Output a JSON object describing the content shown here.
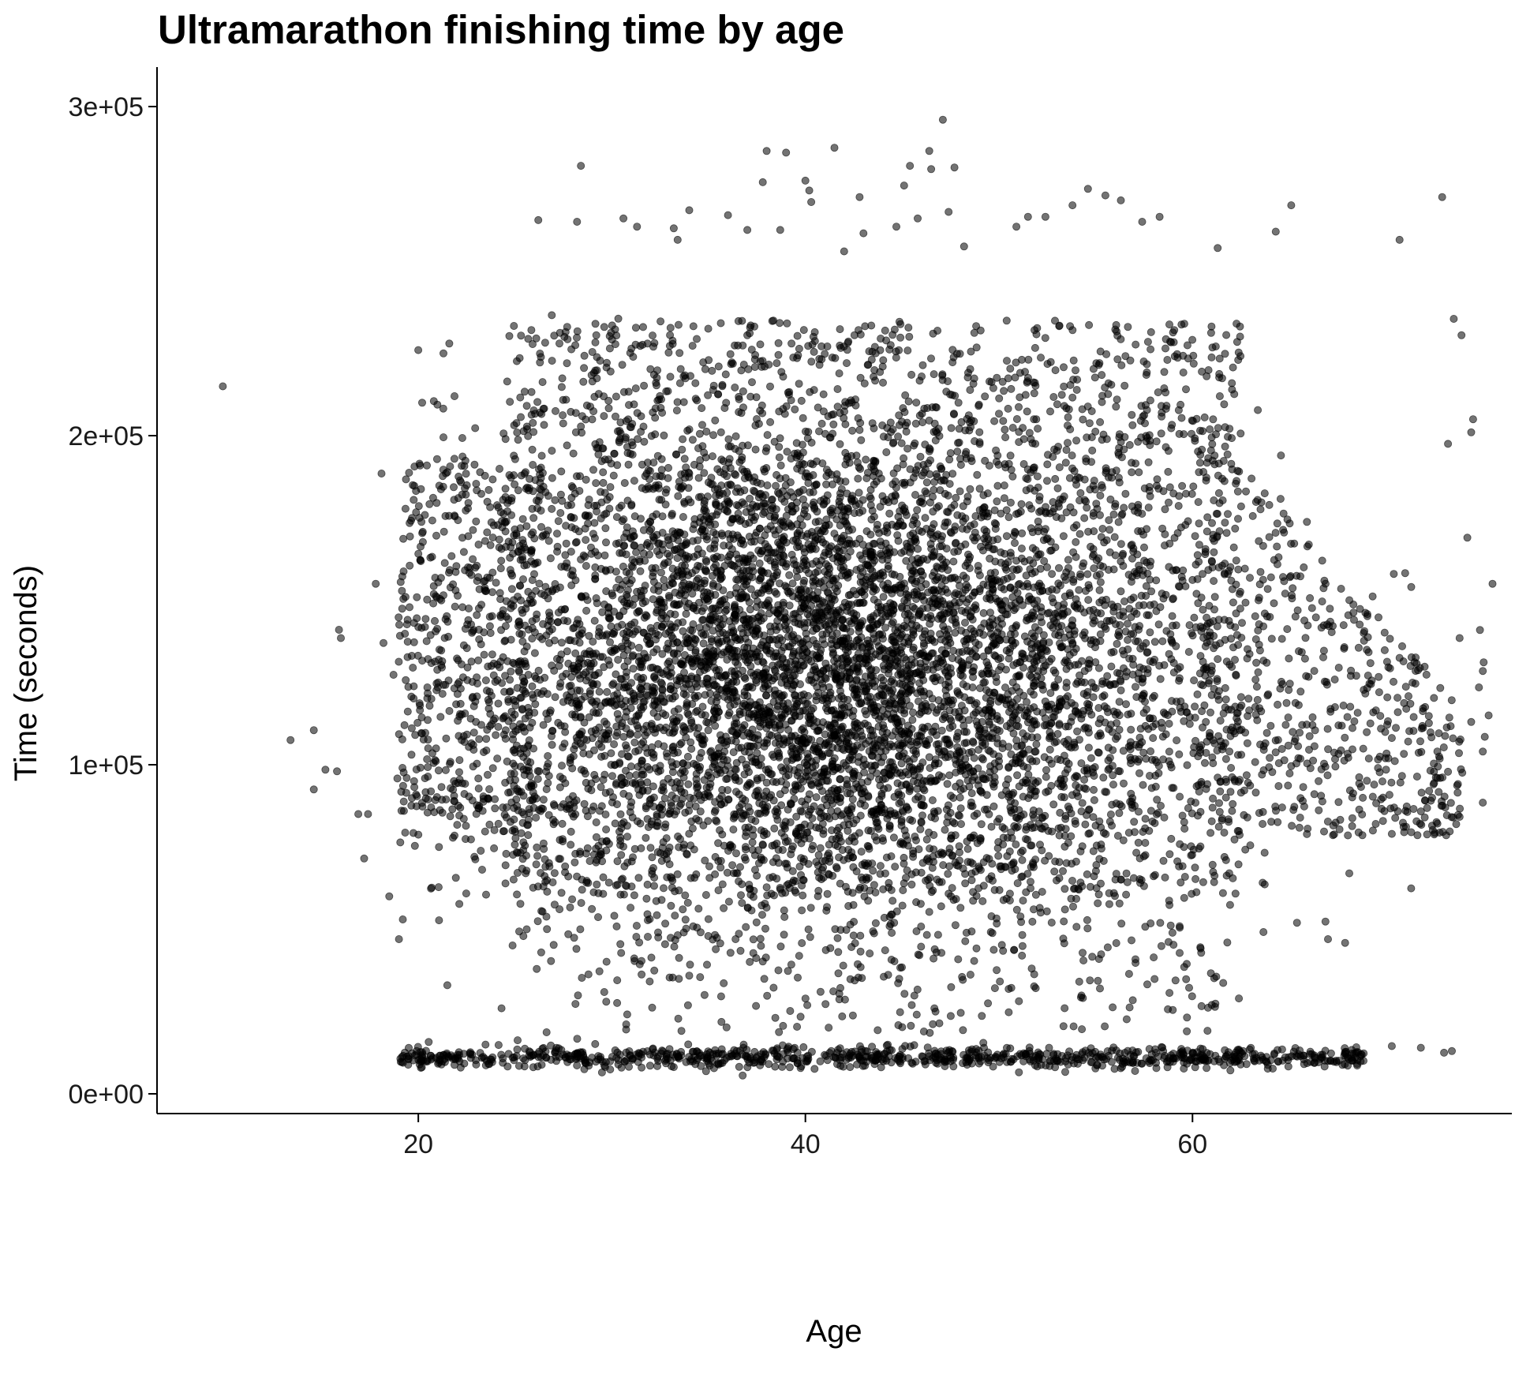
{
  "chart_data": {
    "type": "scatter",
    "title": "Ultramarathon finishing time by age",
    "xlabel": "Age",
    "ylabel": "Time (seconds)",
    "xlim": [
      6.5,
      76.5
    ],
    "ylim": [
      -6000,
      312000
    ],
    "x_ticks": [
      20,
      40,
      60
    ],
    "x_tick_labels": [
      "20",
      "40",
      "60"
    ],
    "y_ticks": [
      0,
      100000,
      200000,
      300000
    ],
    "y_tick_labels": [
      "0e+00",
      "1e+05",
      "2e+05",
      "3e+05"
    ],
    "grid": false,
    "legend": "none",
    "point_color": "#000000",
    "point_opacity": 0.55,
    "density_note_visible": false,
    "points_outliers": [
      [
        9.9,
        215000
      ],
      [
        13.4,
        107500
      ],
      [
        14.6,
        110500
      ],
      [
        14.6,
        92500
      ],
      [
        15.2,
        98500
      ],
      [
        15.8,
        98000
      ],
      [
        15.9,
        141000
      ],
      [
        16.0,
        138500
      ],
      [
        16.9,
        85000
      ],
      [
        17.2,
        71500
      ],
      [
        17.4,
        85000
      ],
      [
        17.8,
        155000
      ],
      [
        18.1,
        188500
      ],
      [
        18.2,
        137000
      ],
      [
        18.5,
        60000
      ],
      [
        19.0,
        47000
      ],
      [
        19.2,
        53000
      ],
      [
        19.4,
        96000
      ],
      [
        20.0,
        226000
      ],
      [
        20.2,
        210000
      ],
      [
        20.8,
        210500
      ],
      [
        21.3,
        225000
      ],
      [
        21.3,
        199500
      ],
      [
        21.6,
        228000
      ],
      [
        21.5,
        33000
      ],
      [
        24.3,
        26000
      ],
      [
        25.6,
        50000
      ],
      [
        26.2,
        265500
      ],
      [
        28.2,
        265000
      ],
      [
        28.4,
        282000
      ],
      [
        30.6,
        266000
      ],
      [
        31.3,
        263500
      ],
      [
        33.2,
        263000
      ],
      [
        33.4,
        259500
      ],
      [
        34.0,
        268500
      ],
      [
        36.0,
        267000
      ],
      [
        37.0,
        262500
      ],
      [
        37.8,
        277000
      ],
      [
        38.0,
        286500
      ],
      [
        38.7,
        262500
      ],
      [
        39.0,
        286000
      ],
      [
        40.0,
        277500
      ],
      [
        40.2,
        274500
      ],
      [
        40.3,
        271000
      ],
      [
        41.5,
        287500
      ],
      [
        42.0,
        256000
      ],
      [
        42.8,
        272500
      ],
      [
        43.0,
        261500
      ],
      [
        44.7,
        263500
      ],
      [
        45.1,
        276000
      ],
      [
        45.4,
        282000
      ],
      [
        45.8,
        266000
      ],
      [
        46.4,
        286500
      ],
      [
        46.5,
        281000
      ],
      [
        47.1,
        296000
      ],
      [
        47.4,
        268000
      ],
      [
        47.7,
        281500
      ],
      [
        48.2,
        257500
      ],
      [
        50.9,
        263500
      ],
      [
        51.5,
        266500
      ],
      [
        52.4,
        266500
      ],
      [
        53.8,
        270000
      ],
      [
        54.6,
        275000
      ],
      [
        55.5,
        273000
      ],
      [
        56.3,
        271500
      ],
      [
        57.4,
        265000
      ],
      [
        58.3,
        266500
      ],
      [
        61.3,
        257000
      ],
      [
        64.3,
        262000
      ],
      [
        65.1,
        270000
      ],
      [
        70.7,
        259500
      ],
      [
        72.9,
        272500
      ],
      [
        73.5,
        235500
      ],
      [
        73.9,
        230500
      ],
      [
        74.5,
        205000
      ],
      [
        74.4,
        201000
      ],
      [
        73.2,
        197500
      ],
      [
        74.2,
        169000
      ],
      [
        73.8,
        138500
      ],
      [
        75.5,
        155000
      ],
      [
        75.0,
        128500
      ],
      [
        74.8,
        123500
      ],
      [
        75.3,
        115000
      ],
      [
        74.4,
        113000
      ],
      [
        75.1,
        108500
      ],
      [
        75.0,
        104000
      ],
      [
        75.0,
        88500
      ],
      [
        72.8,
        96000
      ],
      [
        73.7,
        91500
      ],
      [
        72.0,
        84000
      ],
      [
        71.3,
        79500
      ],
      [
        70.3,
        79000
      ],
      [
        68.1,
        67000
      ],
      [
        70.4,
        158000
      ],
      [
        71.3,
        154000
      ],
      [
        65.4,
        52000
      ],
      [
        67.0,
        47000
      ],
      [
        61.8,
        46000
      ],
      [
        62.4,
        29000
      ],
      [
        61.0,
        27000
      ],
      [
        73.0,
        12500
      ],
      [
        73.4,
        13000
      ],
      [
        71.8,
        14000
      ],
      [
        70.3,
        14500
      ],
      [
        68.7,
        12000
      ]
    ],
    "bands": [
      {
        "x_range": [
          24.5,
          62.5
        ],
        "y_range": [
          58000,
          240000
        ],
        "density": "very high"
      },
      {
        "x_range": [
          18.5,
          26.0
        ],
        "y_range": [
          70000,
          200000
        ],
        "density": "medium"
      },
      {
        "x_range": [
          60.0,
          75.0
        ],
        "y_range": [
          75000,
          220000
        ],
        "density": "medium"
      },
      {
        "x_range": [
          18.5,
          70.0
        ],
        "y_range": [
          9000,
          16000
        ],
        "density": "medium"
      },
      {
        "x_range": [
          25.0,
          62.0
        ],
        "y_range": [
          16000,
          58000
        ],
        "density": "low"
      }
    ]
  }
}
